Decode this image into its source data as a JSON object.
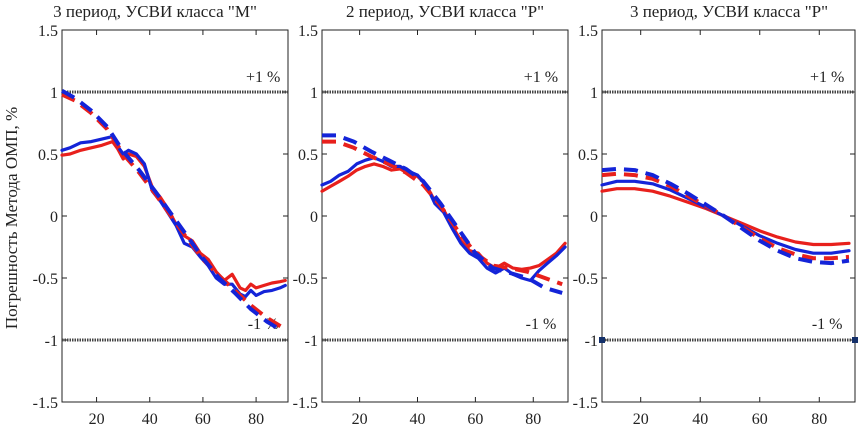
{
  "ylabel": "Погрешность Метода ОМП, %",
  "colors": {
    "red": "#e8201c",
    "blue": "#1424d8",
    "limit": "#444444",
    "marker": "#14306a"
  },
  "chart_data": [
    {
      "type": "line",
      "title": "3 период, УСВИ класса \"М\"",
      "xlim": [
        7,
        92
      ],
      "ylim": [
        -1.5,
        1.5
      ],
      "xticks": [
        20,
        40,
        60,
        80
      ],
      "yticks": [
        -1.5,
        -1,
        -0.5,
        0,
        0.5,
        1,
        1.5
      ],
      "ytick_labels": [
        "-1.5",
        "-1",
        "-0.5",
        "0",
        "0.5",
        "1",
        "1.5"
      ],
      "limits": [
        1,
        -1
      ],
      "limit_labels": [
        "+1 %",
        "-1 %"
      ],
      "series": [
        {
          "name": "red-solid",
          "color": "red",
          "style": "solid",
          "x": [
            7,
            10,
            14,
            18,
            22,
            26,
            28,
            30,
            32,
            35,
            38,
            41,
            44,
            47,
            50,
            53,
            56,
            59,
            62,
            65,
            68,
            71,
            74,
            76,
            78,
            80,
            83,
            86,
            89,
            91
          ],
          "y": [
            0.49,
            0.5,
            0.53,
            0.55,
            0.57,
            0.6,
            0.54,
            0.46,
            0.5,
            0.48,
            0.4,
            0.23,
            0.15,
            0.05,
            -0.07,
            -0.16,
            -0.2,
            -0.3,
            -0.35,
            -0.45,
            -0.52,
            -0.47,
            -0.58,
            -0.6,
            -0.55,
            -0.58,
            -0.56,
            -0.54,
            -0.53,
            -0.52
          ]
        },
        {
          "name": "blue-solid",
          "color": "blue",
          "style": "solid",
          "x": [
            7,
            10,
            14,
            18,
            22,
            26,
            28,
            30,
            32,
            35,
            38,
            41,
            44,
            47,
            50,
            53,
            56,
            59,
            62,
            65,
            68,
            71,
            74,
            76,
            78,
            80,
            83,
            86,
            89,
            91
          ],
          "y": [
            0.53,
            0.55,
            0.59,
            0.6,
            0.62,
            0.64,
            0.56,
            0.5,
            0.53,
            0.5,
            0.42,
            0.2,
            0.12,
            0.02,
            -0.08,
            -0.22,
            -0.25,
            -0.33,
            -0.4,
            -0.5,
            -0.55,
            -0.55,
            -0.63,
            -0.65,
            -0.6,
            -0.64,
            -0.61,
            -0.6,
            -0.58,
            -0.56
          ]
        },
        {
          "name": "red-dashed",
          "color": "red",
          "style": "dashed",
          "x": [
            7,
            12,
            18,
            24,
            30,
            36,
            42,
            48,
            54,
            60,
            66,
            72,
            78,
            84,
            90
          ],
          "y": [
            0.98,
            0.93,
            0.83,
            0.7,
            0.5,
            0.35,
            0.18,
            0.0,
            -0.18,
            -0.35,
            -0.48,
            -0.6,
            -0.72,
            -0.82,
            -0.9
          ]
        },
        {
          "name": "blue-dashed",
          "color": "blue",
          "style": "dashed",
          "x": [
            7,
            12,
            18,
            24,
            30,
            36,
            42,
            48,
            54,
            60,
            66,
            72,
            78,
            84,
            90
          ],
          "y": [
            1.01,
            0.95,
            0.85,
            0.72,
            0.52,
            0.37,
            0.2,
            0.02,
            -0.16,
            -0.34,
            -0.5,
            -0.62,
            -0.75,
            -0.85,
            -0.93
          ]
        }
      ]
    },
    {
      "type": "line",
      "title": "2 период, УСВИ класса \"Р\"",
      "xlim": [
        7,
        92
      ],
      "ylim": [
        -1.5,
        1.5
      ],
      "xticks": [
        20,
        40,
        60,
        80
      ],
      "yticks": [
        -1.5,
        -1,
        -0.5,
        0,
        0.5,
        1,
        1.5
      ],
      "ytick_labels": [
        "-1.5",
        "-1",
        "-0.5",
        "0",
        "0.5",
        "1",
        "1.5"
      ],
      "limits": [
        1,
        -1
      ],
      "limit_labels": [
        "+1 %",
        "-1 %"
      ],
      "series": [
        {
          "name": "red-solid",
          "color": "red",
          "style": "solid",
          "x": [
            7,
            10,
            13,
            16,
            19,
            22,
            25,
            28,
            31,
            34,
            37,
            40,
            43,
            46,
            49,
            52,
            55,
            58,
            61,
            64,
            67,
            70,
            73,
            76,
            79,
            82,
            85,
            88,
            91
          ],
          "y": [
            0.2,
            0.24,
            0.28,
            0.32,
            0.37,
            0.4,
            0.42,
            0.4,
            0.37,
            0.38,
            0.34,
            0.32,
            0.25,
            0.12,
            0.05,
            -0.08,
            -0.2,
            -0.28,
            -0.3,
            -0.38,
            -0.42,
            -0.38,
            -0.42,
            -0.43,
            -0.42,
            -0.4,
            -0.35,
            -0.3,
            -0.22
          ]
        },
        {
          "name": "blue-solid",
          "color": "blue",
          "style": "solid",
          "x": [
            7,
            10,
            13,
            16,
            19,
            22,
            25,
            28,
            31,
            34,
            37,
            40,
            43,
            46,
            49,
            52,
            55,
            58,
            61,
            64,
            67,
            70,
            73,
            76,
            79,
            82,
            85,
            88,
            91
          ],
          "y": [
            0.25,
            0.28,
            0.33,
            0.36,
            0.42,
            0.45,
            0.47,
            0.44,
            0.4,
            0.4,
            0.36,
            0.33,
            0.25,
            0.1,
            0.03,
            -0.1,
            -0.22,
            -0.3,
            -0.34,
            -0.42,
            -0.46,
            -0.42,
            -0.47,
            -0.5,
            -0.52,
            -0.44,
            -0.38,
            -0.32,
            -0.25
          ]
        },
        {
          "name": "red-dashed",
          "color": "red",
          "style": "dashed",
          "x": [
            7,
            12,
            18,
            24,
            30,
            36,
            42,
            48,
            54,
            60,
            66,
            72,
            78,
            84,
            90
          ],
          "y": [
            0.6,
            0.6,
            0.55,
            0.48,
            0.42,
            0.35,
            0.25,
            0.08,
            -0.12,
            -0.3,
            -0.4,
            -0.42,
            -0.45,
            -0.5,
            -0.55
          ]
        },
        {
          "name": "blue-dashed",
          "color": "blue",
          "style": "dashed",
          "x": [
            7,
            12,
            18,
            24,
            30,
            36,
            42,
            48,
            54,
            60,
            66,
            72,
            78,
            84,
            90
          ],
          "y": [
            0.65,
            0.65,
            0.6,
            0.52,
            0.45,
            0.38,
            0.28,
            0.1,
            -0.1,
            -0.3,
            -0.42,
            -0.46,
            -0.5,
            -0.58,
            -0.62
          ]
        }
      ]
    },
    {
      "type": "line",
      "title": "3 период, УСВИ класса \"Р\"",
      "xlim": [
        7,
        92
      ],
      "ylim": [
        -1.5,
        1.5
      ],
      "xticks": [
        20,
        40,
        60,
        80
      ],
      "yticks": [
        -1.5,
        -1,
        -0.5,
        0,
        0.5,
        1,
        1.5
      ],
      "ytick_labels": [
        "-1.5",
        "-1",
        "-0.5",
        "0",
        "0.5",
        "1",
        "1.5"
      ],
      "limits": [
        1,
        -1
      ],
      "limit_labels": [
        "+1 %",
        "-1 %"
      ],
      "series": [
        {
          "name": "red-solid",
          "color": "red",
          "style": "solid",
          "x": [
            7,
            12,
            18,
            24,
            30,
            36,
            42,
            48,
            54,
            60,
            66,
            72,
            78,
            84,
            90
          ],
          "y": [
            0.2,
            0.22,
            0.22,
            0.2,
            0.16,
            0.11,
            0.06,
            0.0,
            -0.06,
            -0.12,
            -0.17,
            -0.21,
            -0.23,
            -0.23,
            -0.22
          ]
        },
        {
          "name": "blue-solid",
          "color": "blue",
          "style": "solid",
          "x": [
            7,
            12,
            18,
            24,
            30,
            36,
            42,
            48,
            54,
            60,
            66,
            72,
            78,
            84,
            90
          ],
          "y": [
            0.25,
            0.28,
            0.28,
            0.26,
            0.21,
            0.14,
            0.07,
            0.0,
            -0.08,
            -0.16,
            -0.22,
            -0.27,
            -0.3,
            -0.3,
            -0.28
          ]
        },
        {
          "name": "red-dashed",
          "color": "red",
          "style": "dashed",
          "x": [
            7,
            12,
            18,
            24,
            30,
            36,
            42,
            48,
            54,
            60,
            66,
            72,
            78,
            84,
            90
          ],
          "y": [
            0.33,
            0.34,
            0.33,
            0.3,
            0.24,
            0.16,
            0.08,
            0.0,
            -0.09,
            -0.18,
            -0.26,
            -0.31,
            -0.34,
            -0.34,
            -0.33
          ]
        },
        {
          "name": "blue-dashed",
          "color": "blue",
          "style": "dashed",
          "x": [
            7,
            12,
            18,
            24,
            30,
            36,
            42,
            48,
            54,
            60,
            66,
            72,
            78,
            84,
            90
          ],
          "y": [
            0.37,
            0.38,
            0.37,
            0.33,
            0.26,
            0.18,
            0.09,
            0.0,
            -0.1,
            -0.2,
            -0.28,
            -0.34,
            -0.37,
            -0.38,
            -0.36
          ]
        }
      ]
    }
  ]
}
